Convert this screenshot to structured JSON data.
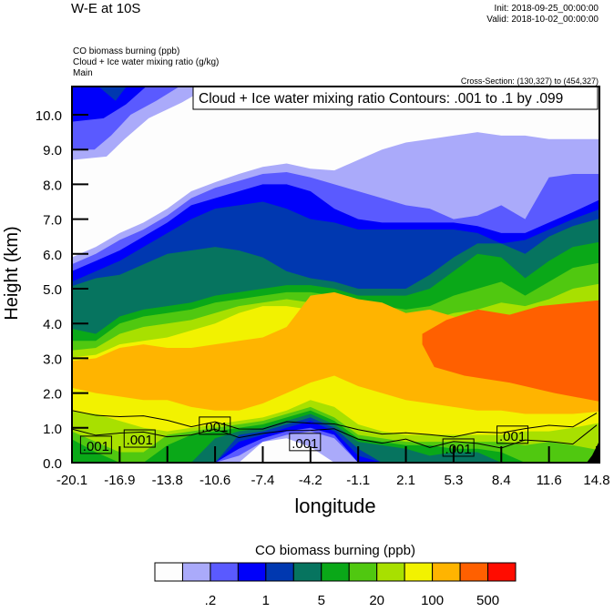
{
  "header": {
    "title": "W-E at 10S",
    "init": "Init: 2018-09-25_00:00:00",
    "valid": "Valid: 2018-10-02_00:00:00",
    "field1": "CO biomass burning   (ppb)",
    "field2": "Cloud + Ice water mixing ratio   (g/kg)",
    "field3": "Main",
    "cross_section": "Cross-Section: (130,327) to (454,327)"
  },
  "chart_data": {
    "type": "heatmap",
    "title": "W-E at 10S",
    "xlabel": "longitude",
    "ylabel": "Height (km)",
    "xlim": [
      -20.1,
      14.8
    ],
    "ylim": [
      0,
      10.8
    ],
    "xticks": [
      "-20.1",
      "-16.9",
      "-13.8",
      "-10.6",
      "-7.4",
      "-4.2",
      "-1.1",
      "2.1",
      "5.3",
      "8.4",
      "11.6",
      "14.8"
    ],
    "yticks": [
      "0.0",
      "1.0",
      "2.0",
      "3.0",
      "4.0",
      "5.0",
      "6.0",
      "7.0",
      "8.0",
      "9.0",
      "10.0"
    ],
    "contour_info": "Cloud + Ice water mixing ratio Contours: .001 to .1 by .099",
    "note": "Band boundary heights (km) sampled at 23 evenly spaced longitudes from -20.1 to 14.8",
    "upper_bands": [
      {
        "level": 1,
        "top": [
          5.8,
          6.2,
          6.6,
          6.9,
          7.3,
          7.8,
          8.06,
          8.3,
          8.5,
          8.6,
          8.45,
          8.4,
          8.7,
          9.0,
          9.2,
          9.3,
          9.4,
          9.5,
          9.4,
          9.4,
          9.3,
          9.3,
          9.3
        ]
      },
      {
        "level": 2,
        "top": [
          5.6,
          6.0,
          6.4,
          6.7,
          7.1,
          7.6,
          7.9,
          8.1,
          8.3,
          8.35,
          8.2,
          8.0,
          7.8,
          7.6,
          7.4,
          7.3,
          7.0,
          7.1,
          7.4,
          7.0,
          8.2,
          8.3,
          8.3
        ]
      },
      {
        "level": 3,
        "top": [
          5.4,
          5.8,
          6.1,
          6.5,
          6.9,
          7.4,
          7.6,
          7.8,
          8.0,
          8.0,
          7.8,
          7.3,
          7.0,
          6.9,
          6.9,
          6.9,
          6.9,
          6.8,
          6.6,
          6.6,
          6.9,
          7.2,
          7.7
        ]
      },
      {
        "level": 4,
        "top": [
          5.1,
          5.5,
          5.8,
          6.2,
          6.6,
          7.0,
          7.3,
          7.4,
          7.5,
          7.3,
          7.0,
          6.9,
          6.7,
          6.7,
          6.7,
          6.7,
          6.7,
          6.6,
          6.3,
          6.4,
          6.7,
          7.0,
          7.4
        ]
      },
      {
        "level": 5,
        "top": [
          5.0,
          5.3,
          5.4,
          5.7,
          6.0,
          6.1,
          6.2,
          6.1,
          5.9,
          5.5,
          5.3,
          5.2,
          5.0,
          5.0,
          5.0,
          5.4,
          5.9,
          6.3,
          6.3,
          6.0,
          6.5,
          6.8,
          7.1
        ]
      },
      {
        "level": 6,
        "top": [
          3.9,
          3.7,
          4.2,
          4.4,
          4.5,
          4.6,
          4.8,
          4.9,
          5.0,
          5.1,
          5.1,
          5.0,
          4.8,
          4.8,
          4.8,
          5.0,
          5.5,
          6.0,
          5.9,
          5.3,
          5.8,
          6.2,
          6.4
        ]
      },
      {
        "level": 7,
        "top": [
          3.5,
          3.5,
          4.0,
          4.2,
          4.3,
          4.4,
          4.6,
          4.7,
          4.8,
          4.9,
          4.9,
          4.8,
          4.6,
          4.5,
          4.4,
          4.5,
          4.8,
          5.0,
          5.2,
          4.8,
          5.2,
          5.6,
          5.8
        ]
      },
      {
        "level": 8,
        "top": [
          3.2,
          3.3,
          3.7,
          3.9,
          4.0,
          4.1,
          4.3,
          4.5,
          4.6,
          4.7,
          4.6,
          4.4,
          4.2,
          4.1,
          4.0,
          4.1,
          4.3,
          4.4,
          4.6,
          4.5,
          4.7,
          5.0,
          5.2
        ]
      },
      {
        "level": 9,
        "top": [
          3.0,
          3.1,
          3.4,
          3.5,
          3.6,
          3.8,
          4.0,
          4.3,
          4.5,
          4.5,
          4.4,
          4.0,
          3.8,
          3.8,
          3.7,
          3.7,
          3.9,
          4.0,
          4.1,
          4.2,
          4.3,
          4.5,
          4.6
        ]
      }
    ],
    "orange_band": {
      "level": 10,
      "top": [
        2.9,
        3.0,
        3.3,
        3.4,
        3.3,
        3.3,
        3.4,
        3.5,
        3.6,
        3.9,
        4.8,
        4.9,
        4.7,
        4.6,
        4.3,
        4.4,
        4.2,
        4.0,
        4.0,
        4.3,
        4.3,
        4.4,
        4.6
      ],
      "bottom": [
        2.2,
        2.0,
        1.9,
        1.8,
        1.8,
        1.6,
        1.5,
        1.5,
        1.7,
        2.0,
        2.3,
        2.5,
        2.2,
        2.0,
        1.8,
        1.7,
        1.6,
        1.5,
        1.5,
        1.4,
        1.4,
        1.4,
        1.5
      ]
    },
    "red_region": {
      "level": 11,
      "outline": [
        [
          3.2,
          3.7
        ],
        [
          4.8,
          4.1
        ],
        [
          6.9,
          4.4
        ],
        [
          9.0,
          4.25
        ],
        [
          11.0,
          4.5
        ],
        [
          14.8,
          4.7
        ],
        [
          14.8,
          1.7
        ],
        [
          12.0,
          2.0
        ],
        [
          9.0,
          2.3
        ],
        [
          6.0,
          2.5
        ],
        [
          4.0,
          2.75
        ],
        [
          3.2,
          3.4
        ]
      ]
    },
    "topleft_region": [
      {
        "level": 1,
        "outline": [
          [
            -20.1,
            10.8
          ],
          [
            -11.0,
            10.8
          ],
          [
            -12.8,
            10.35
          ],
          [
            -15.0,
            9.9
          ],
          [
            -16.6,
            9.3
          ],
          [
            -17.8,
            8.8
          ],
          [
            -20.1,
            8.7
          ]
        ]
      },
      {
        "level": 2,
        "outline": [
          [
            -20.1,
            10.8
          ],
          [
            -13.0,
            10.8
          ],
          [
            -14.5,
            10.4
          ],
          [
            -16.2,
            10.0
          ],
          [
            -17.5,
            9.4
          ],
          [
            -18.6,
            9.0
          ],
          [
            -20.1,
            9.0
          ]
        ]
      },
      {
        "level": 3,
        "outline": [
          [
            -20.1,
            10.8
          ],
          [
            -15.2,
            10.8
          ],
          [
            -16.5,
            10.3
          ],
          [
            -18.0,
            9.9
          ],
          [
            -20.1,
            9.8
          ]
        ]
      },
      {
        "level": 4,
        "outline": [
          [
            -18.3,
            10.8
          ],
          [
            -16.5,
            10.8
          ],
          [
            -17.2,
            10.4
          ]
        ]
      }
    ],
    "surface_bands": [
      {
        "level": 8,
        "top": [
          1.5,
          1.4,
          1.2,
          1.0,
          0.9,
          1.0,
          1.1,
          1.2,
          1.3,
          1.5,
          1.8,
          1.6,
          1.1,
          0.9,
          0.8,
          0.8,
          0.8,
          0.8,
          0.8,
          0.9,
          0.9,
          1.0,
          1.2
        ]
      },
      {
        "level": 7,
        "top": [
          1.0,
          0.6,
          0.3,
          0.3,
          0.8,
          0.9,
          1.0,
          1.1,
          1.2,
          1.4,
          1.6,
          1.3,
          0.8,
          0.7,
          0.6,
          0.6,
          0.6,
          0.6,
          0.6,
          0.5,
          0.6,
          0.5,
          0.3
        ]
      },
      {
        "level": 6,
        "top": [
          0.8,
          0.3,
          0,
          0,
          0.5,
          0.8,
          0.9,
          1.0,
          1.1,
          1.3,
          1.5,
          1.2,
          0.7,
          0.6,
          0.5,
          0.5,
          0.4,
          0.4,
          0.3,
          0,
          0,
          0,
          0
        ]
      },
      {
        "level": 5,
        "top": [
          0,
          0,
          0,
          0,
          0,
          0,
          0.7,
          0.9,
          1.0,
          1.2,
          1.4,
          1.1,
          0.6,
          0.5,
          0.4,
          0.2,
          0.3,
          0.3,
          0,
          0,
          0,
          0,
          0
        ]
      },
      {
        "level": 4,
        "top": [
          0,
          0,
          0,
          0,
          0,
          0,
          0,
          0.8,
          0.9,
          1.1,
          1.3,
          1.0,
          0.4,
          0,
          0,
          0,
          0,
          0,
          0,
          0,
          0,
          0,
          0
        ]
      },
      {
        "level": 3,
        "top": [
          0,
          0,
          0,
          0,
          0,
          0,
          0,
          0.6,
          0.8,
          1.0,
          1.2,
          0.9,
          0.2,
          0,
          0,
          0,
          0,
          0,
          0,
          0,
          0,
          0,
          0
        ]
      },
      {
        "level": 2,
        "top": [
          0,
          0,
          0,
          0,
          0,
          0,
          0,
          0.4,
          0.7,
          0.9,
          1.0,
          0.8,
          0,
          0,
          0,
          0,
          0,
          0,
          0,
          0,
          0,
          0,
          0
        ]
      },
      {
        "level": 1,
        "top": [
          0,
          0,
          0,
          0,
          0,
          0,
          0,
          0.2,
          0.6,
          0.8,
          0.9,
          0.7,
          0,
          0,
          0,
          0,
          0,
          0,
          0,
          0,
          0,
          0,
          0
        ]
      },
      {
        "level": 0,
        "top": [
          0,
          0,
          0,
          0,
          0,
          0,
          0,
          0,
          0.6,
          0.7,
          0.45,
          0,
          0,
          0,
          0,
          0,
          0,
          0,
          0,
          0,
          0,
          0,
          0
        ]
      }
    ],
    "contour_lines": [
      [
        1.5,
        1.3,
        1.4,
        1.3,
        1.2,
        1.1,
        1.1,
        1.0,
        1.0,
        1.1,
        1.2,
        1.1,
        0.9,
        0.9,
        0.8,
        0.8,
        0.8,
        0.8,
        0.9,
        1.0,
        1.0,
        1.1,
        1.4
      ],
      [
        0.9,
        0.8,
        0.9,
        0.8,
        0.8,
        0.8,
        0.9,
        0.8,
        0.8,
        0.9,
        1.0,
        0.9,
        0.7,
        0.6,
        0.6,
        0.5,
        0.6,
        0.5,
        0.5,
        0.6,
        0.6,
        0.6,
        1.0
      ]
    ],
    "contour_labels": [
      {
        "text": ".001",
        "lon": -18.5,
        "km": 0.5
      },
      {
        "text": ".001",
        "lon": -15.6,
        "km": 0.68
      },
      {
        "text": ".001",
        "lon": -10.6,
        "km": 1.05
      },
      {
        "text": ".001",
        "lon": -4.6,
        "km": 0.58
      },
      {
        "text": ".001",
        "lon": 5.6,
        "km": 0.42
      },
      {
        "text": ".001",
        "lon": 9.2,
        "km": 0.79
      }
    ],
    "colorbar": {
      "title": "CO biomass burning  (ppb)",
      "colors": [
        "#fdfdfd",
        "#aaaafa",
        "#5a5aff",
        "#0000fa",
        "#0038b0",
        "#06745f",
        "#0aa818",
        "#50c810",
        "#a8e000",
        "#f2f200",
        "#ffb400",
        "#ff6000",
        "#ff0c00"
      ],
      "labels": [
        ".2",
        "1",
        "5",
        "20",
        "100",
        "500"
      ],
      "label_boundaries": [
        2,
        4,
        6,
        8,
        10,
        12
      ]
    }
  }
}
